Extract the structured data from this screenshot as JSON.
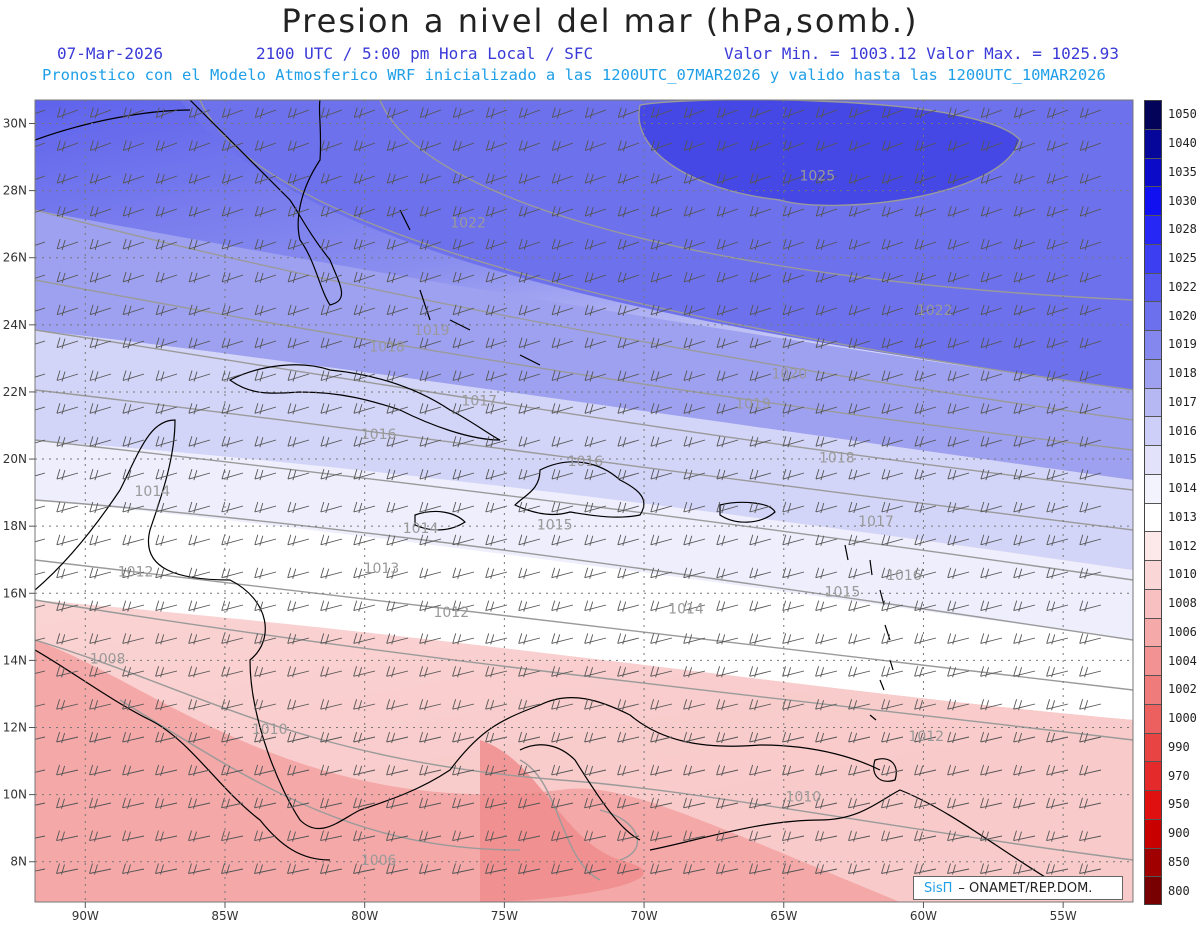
{
  "title": "Presion a nivel del mar (hPa,somb.)",
  "header": {
    "date": "07-Mar-2026",
    "time": "2100 UTC / 5:00 pm Hora Local / SFC",
    "minmax": "Valor Min. = 1003.12  Valor Max. = 1025.93",
    "info": "Pronostico con el Modelo Atmosferico WRF inicializado a las 1200UTC_07MAR2026 y valido hasta las  1200UTC_10MAR2026"
  },
  "credit": {
    "sis": "SisΠ",
    "org": "– ONAMET/REP.DOM."
  },
  "map": {
    "lon_labels": [
      "90W",
      "85W",
      "80W",
      "75W",
      "70W",
      "65W",
      "60W",
      "55W"
    ],
    "lon_values": [
      -90,
      -85,
      -80,
      -75,
      -70,
      -65,
      -60,
      -55
    ],
    "lat_labels": [
      "30N",
      "28N",
      "26N",
      "24N",
      "22N",
      "20N",
      "18N",
      "16N",
      "14N",
      "12N",
      "10N",
      "8N"
    ],
    "lat_values": [
      30,
      28,
      26,
      24,
      22,
      20,
      18,
      16,
      14,
      12,
      10,
      8
    ],
    "lon_range": [
      -91.8,
      -52.5
    ],
    "lat_range": [
      6.8,
      30.7
    ],
    "isobar_labels": [
      {
        "text": "1025",
        "lon": -63.8,
        "lat": 28.3
      },
      {
        "text": "1022",
        "lon": -76.3,
        "lat": 26.9
      },
      {
        "text": "1022",
        "lon": -59.6,
        "lat": 24.3
      },
      {
        "text": "1020",
        "lon": -64.8,
        "lat": 22.4
      },
      {
        "text": "1019",
        "lon": -77.6,
        "lat": 23.7
      },
      {
        "text": "1019",
        "lon": -66.1,
        "lat": 21.5
      },
      {
        "text": "1018",
        "lon": -79.2,
        "lat": 23.2
      },
      {
        "text": "1018",
        "lon": -63.1,
        "lat": 19.9
      },
      {
        "text": "1017",
        "lon": -75.9,
        "lat": 21.6
      },
      {
        "text": "1017",
        "lon": -61.7,
        "lat": 18.0
      },
      {
        "text": "1016",
        "lon": -79.5,
        "lat": 20.6
      },
      {
        "text": "1016",
        "lon": -72.1,
        "lat": 19.8
      },
      {
        "text": "1016",
        "lon": -60.7,
        "lat": 16.4
      },
      {
        "text": "1015",
        "lon": -73.2,
        "lat": 17.9
      },
      {
        "text": "1015",
        "lon": -62.9,
        "lat": 15.9
      },
      {
        "text": "1014",
        "lon": -87.6,
        "lat": 18.9
      },
      {
        "text": "1014",
        "lon": -78.0,
        "lat": 17.8
      },
      {
        "text": "1014",
        "lon": -68.5,
        "lat": 15.4
      },
      {
        "text": "1013",
        "lon": -79.4,
        "lat": 16.6
      },
      {
        "text": "1012",
        "lon": -88.2,
        "lat": 16.5
      },
      {
        "text": "1012",
        "lon": -76.9,
        "lat": 15.3
      },
      {
        "text": "1012",
        "lon": -59.9,
        "lat": 11.6
      },
      {
        "text": "1010",
        "lon": -83.4,
        "lat": 11.8
      },
      {
        "text": "1010",
        "lon": -64.3,
        "lat": 9.8
      },
      {
        "text": "1008",
        "lon": -89.2,
        "lat": 13.9
      },
      {
        "text": "1006",
        "lon": -79.5,
        "lat": 7.9
      }
    ]
  },
  "colorbar": {
    "levels": [
      "1050",
      "1040",
      "1035",
      "1030",
      "1028",
      "1025",
      "1022",
      "1020",
      "1019",
      "1018",
      "1017",
      "1016",
      "1015",
      "1014",
      "1013",
      "1012",
      "1010",
      "1008",
      "1006",
      "1004",
      "1002",
      "1000",
      "990",
      "970",
      "950",
      "900",
      "850",
      "800"
    ],
    "colors": [
      "#03035a",
      "#06069a",
      "#0a0ac8",
      "#1010f0",
      "#2626f5",
      "#3c3ef2",
      "#5558ee",
      "#6c70ec",
      "#8488ee",
      "#9ea0f0",
      "#b6b8f4",
      "#cdcff8",
      "#e2e3fb",
      "#f3f3fe",
      "#ffffff",
      "#fde9e9",
      "#fbd6d6",
      "#f8c0c0",
      "#f5a9a9",
      "#f39292",
      "#f07b7b",
      "#ec6060",
      "#e84444",
      "#e42a2a",
      "#e01010",
      "#c80000",
      "#a00000",
      "#780000"
    ]
  }
}
